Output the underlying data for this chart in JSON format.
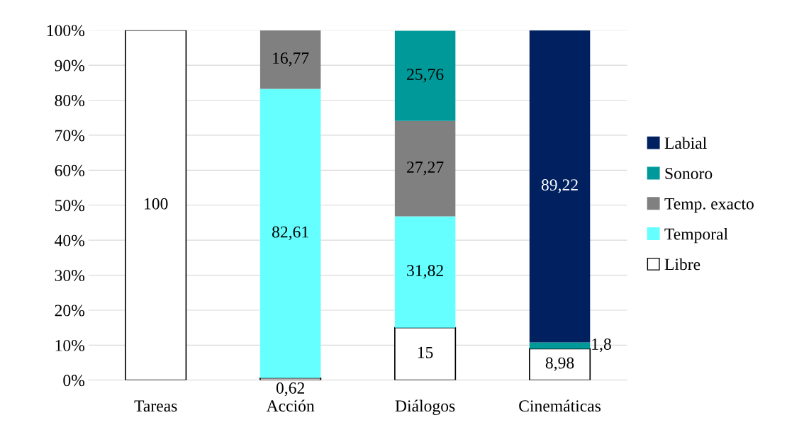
{
  "chart_data": {
    "type": "bar",
    "stacked": true,
    "categories": [
      "Tareas",
      "Acción",
      "Diálogos",
      "Cinemáticas"
    ],
    "series": [
      {
        "name": "Libre",
        "color": "#ffffff",
        "values": [
          100,
          0.62,
          15,
          8.98
        ],
        "value_labels": [
          "100",
          "0,62",
          "15",
          "8,98"
        ]
      },
      {
        "name": "Temporal",
        "color": "#66ffff",
        "values": [
          null,
          82.61,
          31.82,
          null
        ],
        "value_labels": [
          null,
          "82,61",
          "31,82",
          null
        ]
      },
      {
        "name": "Temp. exacto",
        "color": "#808080",
        "values": [
          null,
          16.77,
          27.27,
          null
        ],
        "value_labels": [
          null,
          "16,77",
          "27,27",
          null
        ]
      },
      {
        "name": "Sonoro",
        "color": "#009999",
        "values": [
          null,
          null,
          25.76,
          1.8
        ],
        "value_labels": [
          null,
          null,
          "25,76",
          "1,8"
        ]
      },
      {
        "name": "Labial",
        "color": "#002060",
        "values": [
          null,
          null,
          null,
          89.22
        ],
        "value_labels": [
          null,
          null,
          null,
          "89,22"
        ]
      }
    ],
    "ylim": [
      0,
      100
    ],
    "yticks": [
      {
        "value": 0,
        "label": "0%"
      },
      {
        "value": 10,
        "label": "10%"
      },
      {
        "value": 20,
        "label": "20%"
      },
      {
        "value": 30,
        "label": "30%"
      },
      {
        "value": 40,
        "label": "40%"
      },
      {
        "value": 50,
        "label": "50%"
      },
      {
        "value": 60,
        "label": "60%"
      },
      {
        "value": 70,
        "label": "70%"
      },
      {
        "value": 80,
        "label": "80%"
      },
      {
        "value": 90,
        "label": "90%"
      },
      {
        "value": 100,
        "label": "100%"
      }
    ],
    "grid": "y",
    "legend": "right"
  }
}
